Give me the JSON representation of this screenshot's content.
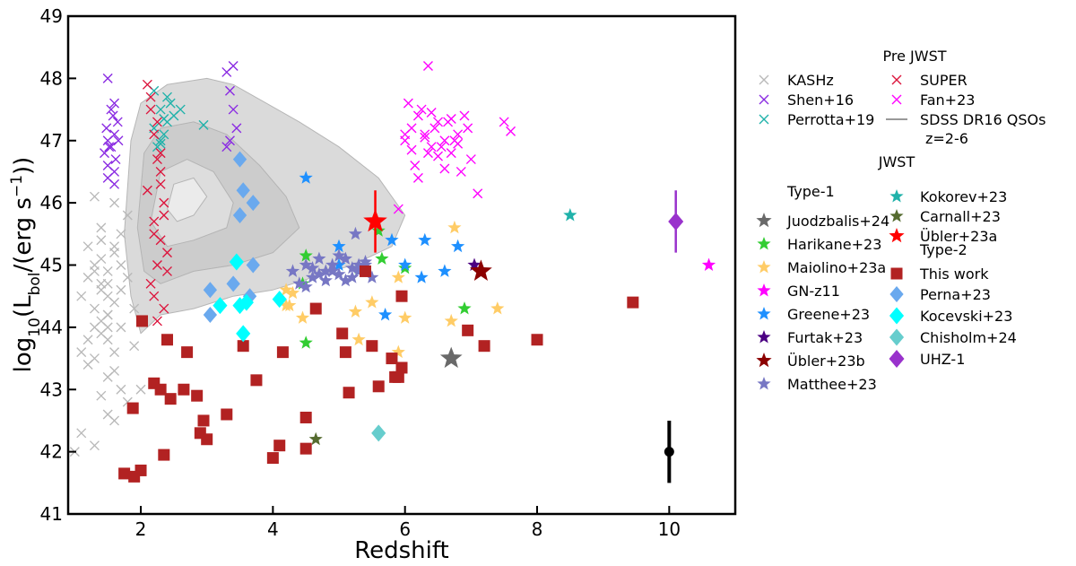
{
  "chart_data": {
    "type": "scatter",
    "xlabel": "Redshift",
    "ylabel": "log10(Lbol/(erg s−1))",
    "xlim": [
      0.9,
      11.0
    ],
    "ylim": [
      41,
      49
    ],
    "xticks": [
      2,
      4,
      6,
      8,
      10
    ],
    "yticks": [
      41,
      42,
      43,
      44,
      45,
      46,
      47,
      48,
      49
    ],
    "grid": false,
    "legend_placement": "outside right",
    "legend_groups": {
      "pre_jwst": "Pre JWST",
      "jwst": "JWST",
      "type1": "Type-1",
      "type2": "Type-2"
    },
    "density_contour": {
      "name": "SDSS DR16 QSOs",
      "note": "z=2-6",
      "color": "#bdbdbd",
      "levels": [
        [
          [
            1.75,
            45.5
          ],
          [
            1.85,
            47.0
          ],
          [
            2.0,
            47.6
          ],
          [
            2.4,
            47.9
          ],
          [
            3.0,
            48.0
          ],
          [
            3.4,
            47.9
          ],
          [
            3.9,
            47.6
          ],
          [
            4.4,
            47.3
          ],
          [
            5.0,
            46.9
          ],
          [
            5.6,
            46.4
          ],
          [
            6.0,
            45.8
          ],
          [
            5.8,
            45.3
          ],
          [
            5.2,
            45.0
          ],
          [
            4.6,
            44.8
          ],
          [
            4.0,
            44.6
          ],
          [
            3.4,
            44.5
          ],
          [
            2.8,
            44.3
          ],
          [
            2.3,
            44.2
          ],
          [
            2.0,
            43.9
          ],
          [
            1.85,
            44.5
          ]
        ],
        [
          [
            1.95,
            45.6
          ],
          [
            2.05,
            46.8
          ],
          [
            2.3,
            47.2
          ],
          [
            2.8,
            47.3
          ],
          [
            3.3,
            47.1
          ],
          [
            3.8,
            46.6
          ],
          [
            4.2,
            46.1
          ],
          [
            4.4,
            45.6
          ],
          [
            4.0,
            45.2
          ],
          [
            3.4,
            45.0
          ],
          [
            2.8,
            44.9
          ],
          [
            2.3,
            44.7
          ],
          [
            2.05,
            44.9
          ]
        ],
        [
          [
            2.15,
            45.7
          ],
          [
            2.3,
            46.5
          ],
          [
            2.7,
            46.7
          ],
          [
            3.1,
            46.5
          ],
          [
            3.4,
            46.0
          ],
          [
            3.3,
            45.6
          ],
          [
            2.8,
            45.4
          ],
          [
            2.4,
            45.3
          ]
        ],
        [
          [
            2.4,
            45.9
          ],
          [
            2.5,
            46.3
          ],
          [
            2.8,
            46.4
          ],
          [
            3.0,
            46.1
          ],
          [
            2.8,
            45.8
          ],
          [
            2.55,
            45.7
          ]
        ]
      ]
    },
    "series": [
      {
        "name": "KASHz",
        "group": "pre_jwst",
        "marker": "x",
        "color": "#b9b9b9",
        "x": [
          1.1,
          1.2,
          1.3,
          1.4,
          1.5,
          1.6,
          1.3,
          1.5,
          1.7,
          1.4,
          1.2,
          1.6,
          1.8,
          1.5,
          1.3,
          1.4,
          1.7,
          1.6,
          1.2,
          1.5,
          1.4,
          1.3,
          1.6,
          1.8,
          1.5,
          1.1,
          1.4,
          1.7,
          1.5,
          1.3,
          1.9,
          2.0,
          1.6,
          1.4,
          1.5,
          1.3,
          1.7,
          1.2,
          1.6,
          1.4,
          1.5,
          1.8,
          1.3,
          1.6,
          1.4,
          1.0,
          1.1,
          1.7,
          1.5,
          1.9
        ],
        "y": [
          44.5,
          44.8,
          45.0,
          44.6,
          44.9,
          45.2,
          44.3,
          44.7,
          45.5,
          44.1,
          43.8,
          44.4,
          45.8,
          44.2,
          43.5,
          43.9,
          45.0,
          46.0,
          45.3,
          43.2,
          42.9,
          44.0,
          43.6,
          44.8,
          42.6,
          42.3,
          45.6,
          43.0,
          44.5,
          46.1,
          44.3,
          43.0,
          42.5,
          45.1,
          43.8,
          42.1,
          44.0,
          43.4,
          45.3,
          44.7,
          44.2,
          42.8,
          44.9,
          43.3,
          45.4,
          42.0,
          43.6,
          44.6,
          44.0,
          43.7
        ]
      },
      {
        "name": "Shen+16",
        "group": "pre_jwst",
        "marker": "x",
        "color": "#8a2be2",
        "x": [
          1.45,
          1.5,
          1.55,
          1.6,
          1.65,
          1.5,
          1.55,
          1.6,
          1.48,
          1.62,
          1.58,
          1.52,
          1.66,
          1.5,
          1.6,
          3.3,
          3.35,
          3.4,
          3.45,
          3.3,
          3.4,
          3.35,
          1.5,
          1.6
        ],
        "y": [
          46.8,
          47.0,
          46.9,
          47.1,
          47.3,
          46.6,
          47.5,
          46.3,
          47.2,
          46.7,
          47.4,
          46.9,
          47.0,
          48.0,
          46.5,
          48.1,
          47.8,
          47.5,
          47.2,
          46.9,
          48.2,
          47.0,
          46.4,
          47.6
        ]
      },
      {
        "name": "Perrotta+19",
        "group": "pre_jwst",
        "marker": "x",
        "color": "#20b2aa",
        "x": [
          2.2,
          2.3,
          2.4,
          2.35,
          2.25,
          2.45,
          2.3,
          2.5,
          2.6,
          2.2,
          2.4,
          2.35,
          2.95,
          2.3
        ],
        "y": [
          47.8,
          47.5,
          47.3,
          47.1,
          46.9,
          47.6,
          47.0,
          47.4,
          47.5,
          47.2,
          47.7,
          47.35,
          47.25,
          46.95
        ]
      },
      {
        "name": "SUPER",
        "group": "pre_jwst",
        "marker": "x",
        "color": "#dc143c",
        "x": [
          2.1,
          2.15,
          2.2,
          2.25,
          2.3,
          2.35,
          2.2,
          2.3,
          2.25,
          2.15,
          2.35,
          2.4,
          2.2,
          2.3,
          2.25,
          2.1,
          2.4,
          2.2,
          2.3,
          2.35,
          2.15,
          2.25
        ],
        "y": [
          47.9,
          47.5,
          47.1,
          46.7,
          46.3,
          46.0,
          45.7,
          45.4,
          45.0,
          44.7,
          44.3,
          44.9,
          45.5,
          46.5,
          47.3,
          46.2,
          45.2,
          44.5,
          46.8,
          45.8,
          47.7,
          44.1
        ]
      },
      {
        "name": "Fan+23",
        "group": "pre_jwst",
        "marker": "x",
        "color": "#ff00ff",
        "x": [
          6.0,
          6.1,
          6.2,
          6.3,
          6.4,
          6.5,
          6.6,
          6.7,
          6.8,
          6.9,
          7.0,
          6.05,
          6.15,
          6.25,
          6.35,
          6.45,
          6.55,
          6.65,
          6.75,
          6.85,
          6.95,
          6.2,
          6.4,
          6.6,
          6.8,
          6.3,
          6.5,
          6.7,
          6.1,
          7.5,
          7.6,
          6.35,
          5.9,
          6.0,
          7.1
        ],
        "y": [
          47.0,
          47.2,
          47.4,
          47.1,
          46.9,
          47.3,
          47.0,
          46.8,
          47.1,
          47.4,
          46.7,
          47.6,
          46.6,
          47.5,
          46.8,
          47.2,
          46.9,
          47.3,
          47.0,
          46.5,
          47.2,
          46.4,
          47.45,
          46.55,
          46.95,
          47.05,
          46.75,
          47.35,
          46.85,
          47.3,
          47.15,
          48.2,
          45.9,
          47.1,
          46.15
        ]
      },
      {
        "name": "Juodzbalis+24",
        "group": "type1",
        "marker": "star",
        "color": "#696969",
        "size": 26,
        "x": [
          6.7
        ],
        "y": [
          43.5
        ]
      },
      {
        "name": "Harikane+23",
        "group": "type1",
        "marker": "star",
        "color": "#32cd32",
        "size": 16,
        "x": [
          4.5,
          4.5,
          5.3,
          5.6,
          5.65,
          6.0,
          6.9,
          4.45
        ],
        "y": [
          45.15,
          43.75,
          44.95,
          45.55,
          45.1,
          44.95,
          44.3,
          44.7
        ]
      },
      {
        "name": "Maiolino+23a",
        "group": "type1",
        "marker": "star",
        "color": "#ffcc66",
        "size": 16,
        "x": [
          4.3,
          4.45,
          4.2,
          5.25,
          5.5,
          5.9,
          6.0,
          6.7,
          6.75,
          7.4,
          4.2,
          4.25,
          5.3,
          5.9
        ],
        "y": [
          44.55,
          44.15,
          44.35,
          44.25,
          44.4,
          44.8,
          44.15,
          44.1,
          45.6,
          44.3,
          44.6,
          44.35,
          43.8,
          43.6
        ]
      },
      {
        "name": "GN-z11",
        "group": "type1",
        "marker": "star",
        "color": "#ff00ff",
        "size": 16,
        "x": [
          10.6
        ],
        "y": [
          45.0
        ]
      },
      {
        "name": "Greene+23",
        "group": "type1",
        "marker": "star",
        "color": "#1e90ff",
        "size": 16,
        "x": [
          4.5,
          5.0,
          5.8,
          6.3,
          6.8,
          6.25,
          6.6,
          6.0,
          5.7,
          5.0
        ],
        "y": [
          46.4,
          45.3,
          45.4,
          45.4,
          45.3,
          44.8,
          44.9,
          45.0,
          44.2,
          45.0
        ]
      },
      {
        "name": "Furtak+23",
        "group": "type1",
        "marker": "star",
        "color": "#4b0082",
        "size": 16,
        "x": [
          7.05
        ],
        "y": [
          45.0
        ]
      },
      {
        "name": "Übler+23b",
        "group": "type1",
        "marker": "star",
        "color": "#8b0000",
        "size": 26,
        "x": [
          7.15
        ],
        "y": [
          44.9
        ]
      },
      {
        "name": "Matthee+23",
        "group": "type1",
        "marker": "star",
        "color": "#7777c4",
        "size": 16,
        "x": [
          4.3,
          4.5,
          4.6,
          4.7,
          4.8,
          4.9,
          5.0,
          5.1,
          5.2,
          5.3,
          5.4,
          5.5,
          4.4,
          4.6,
          4.8,
          5.0,
          5.2,
          5.4,
          4.9,
          5.1,
          5.3,
          4.7,
          4.5,
          5.25
        ],
        "y": [
          44.9,
          45.0,
          44.8,
          45.1,
          44.9,
          45.0,
          44.85,
          45.1,
          44.95,
          44.9,
          45.0,
          44.8,
          44.7,
          44.95,
          44.75,
          45.15,
          44.8,
          45.05,
          44.9,
          44.75,
          45.0,
          44.85,
          44.65,
          45.5
        ]
      },
      {
        "name": "Kokorev+23",
        "group": "type1",
        "marker": "star",
        "color": "#20b2aa",
        "size": 16,
        "x": [
          8.5
        ],
        "y": [
          45.8
        ]
      },
      {
        "name": "Carnall+23",
        "group": "type1",
        "marker": "star",
        "color": "#556b2f",
        "size": 16,
        "x": [
          4.65
        ],
        "y": [
          42.2
        ]
      },
      {
        "name": "Übler+23a",
        "group": "type1",
        "marker": "star",
        "color": "#ff0000",
        "size": 28,
        "x": [
          5.55
        ],
        "y": [
          45.7
        ],
        "yerr": [
          0.5
        ]
      },
      {
        "name": "This work",
        "group": "type2",
        "marker": "square",
        "color": "#b22222",
        "size": 13,
        "x": [
          1.75,
          1.9,
          2.02,
          1.88,
          2.0,
          2.2,
          2.3,
          2.35,
          2.45,
          2.4,
          2.65,
          2.7,
          2.85,
          2.9,
          2.95,
          3.0,
          3.3,
          3.55,
          3.75,
          4.0,
          4.1,
          4.15,
          4.5,
          4.5,
          4.65,
          5.05,
          5.1,
          5.15,
          5.5,
          5.6,
          5.8,
          5.85,
          5.9,
          5.95,
          5.95,
          6.95,
          7.2,
          8.0,
          9.45,
          5.4
        ],
        "y": [
          41.65,
          41.6,
          44.1,
          42.7,
          41.7,
          43.1,
          43.0,
          41.95,
          42.85,
          43.8,
          43.0,
          43.6,
          42.9,
          42.3,
          42.5,
          42.2,
          42.6,
          43.7,
          43.15,
          41.9,
          42.1,
          43.6,
          42.55,
          42.05,
          44.3,
          43.9,
          43.6,
          42.95,
          43.7,
          43.05,
          43.5,
          43.2,
          43.2,
          44.5,
          43.35,
          43.95,
          43.7,
          43.8,
          44.4,
          44.9
        ]
      },
      {
        "name": "Perna+23",
        "group": "type2",
        "marker": "diamond",
        "color": "#6aa9ee",
        "size": 14,
        "x": [
          3.5,
          3.55,
          3.5,
          3.7,
          3.7,
          3.05,
          3.05,
          3.4,
          3.65
        ],
        "y": [
          46.7,
          46.2,
          45.8,
          46.0,
          45.0,
          44.6,
          44.2,
          44.7,
          44.5
        ]
      },
      {
        "name": "Kocevski+23",
        "group": "type2",
        "marker": "diamond",
        "color": "#00ffff",
        "size": 15,
        "x": [
          3.45,
          3.2,
          3.5,
          3.55,
          4.1,
          3.6
        ],
        "y": [
          45.05,
          44.35,
          44.35,
          43.9,
          44.45,
          44.4
        ]
      },
      {
        "name": "Chisholm+24",
        "group": "type2",
        "marker": "diamond",
        "color": "#66cdcd",
        "size": 15,
        "x": [
          5.6
        ],
        "y": [
          42.3
        ]
      },
      {
        "name": "UHZ-1",
        "group": "type2",
        "marker": "diamond",
        "color": "#9932cc",
        "size": 16,
        "x": [
          10.1
        ],
        "y": [
          45.7
        ],
        "yerr": [
          0.5
        ]
      }
    ],
    "typical_error": {
      "x": 10.0,
      "y": 42.0,
      "yerr": 0.5,
      "color": "#000000"
    }
  }
}
